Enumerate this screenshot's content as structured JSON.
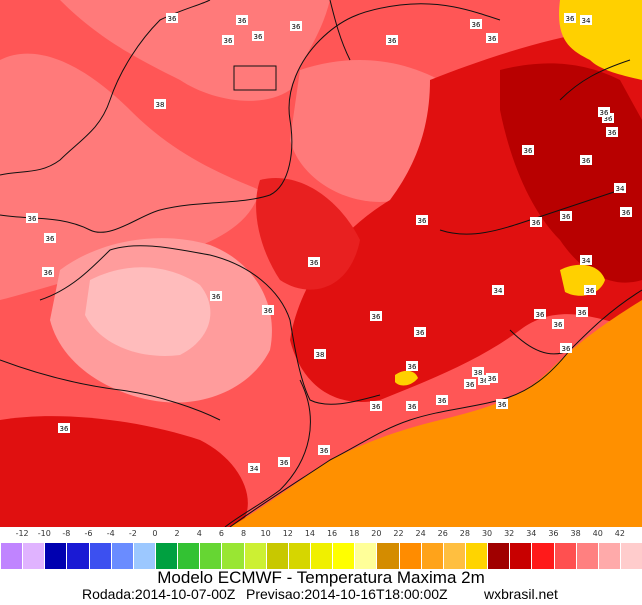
{
  "map": {
    "temp_labels": [
      "36",
      "36",
      "36",
      "36",
      "36",
      "36",
      "36",
      "36",
      "36",
      "34",
      "38",
      "36",
      "36",
      "36",
      "36",
      "36",
      "36",
      "36",
      "34",
      "34",
      "36",
      "36",
      "36",
      "36",
      "36",
      "38",
      "36",
      "38",
      "36",
      "36",
      "36",
      "36",
      "36",
      "36",
      "36",
      "36",
      "36",
      "36",
      "36",
      "36",
      "36",
      "36",
      "34",
      "36",
      "36",
      "36",
      "34",
      "36",
      "36",
      "36"
    ]
  },
  "scale": {
    "ticks": [
      "-12",
      "-10",
      "-8",
      "-6",
      "-4",
      "-2",
      "0",
      "2",
      "4",
      "6",
      "8",
      "10",
      "12",
      "14",
      "16",
      "18",
      "20",
      "22",
      "24",
      "26",
      "28",
      "30",
      "32",
      "34",
      "36",
      "38",
      "40",
      "42"
    ],
    "colors": [
      "#c084ff",
      "#e0b3ff",
      "#0000b0",
      "#1a1ad4",
      "#3c50f0",
      "#6a8cff",
      "#9cc8ff",
      "#00a040",
      "#33c233",
      "#66d633",
      "#99e633",
      "#ccf033",
      "#c8c800",
      "#d6d600",
      "#f0f000",
      "#ffff00",
      "#ffff99",
      "#d48c00",
      "#ff8c00",
      "#ffa31a",
      "#ffbf40",
      "#ffd400",
      "#a00000",
      "#c80000",
      "#ff1a1a",
      "#ff5050",
      "#ff8080",
      "#ffaaaa",
      "#ffcccc"
    ]
  },
  "title": "Modelo ECMWF - Temperatura Maxima 2m",
  "run": "Rodada:2014-10-07-00Z",
  "forecast": "Previsao:2014-10-16T18:00:00Z",
  "site": "wxbrasil.net"
}
